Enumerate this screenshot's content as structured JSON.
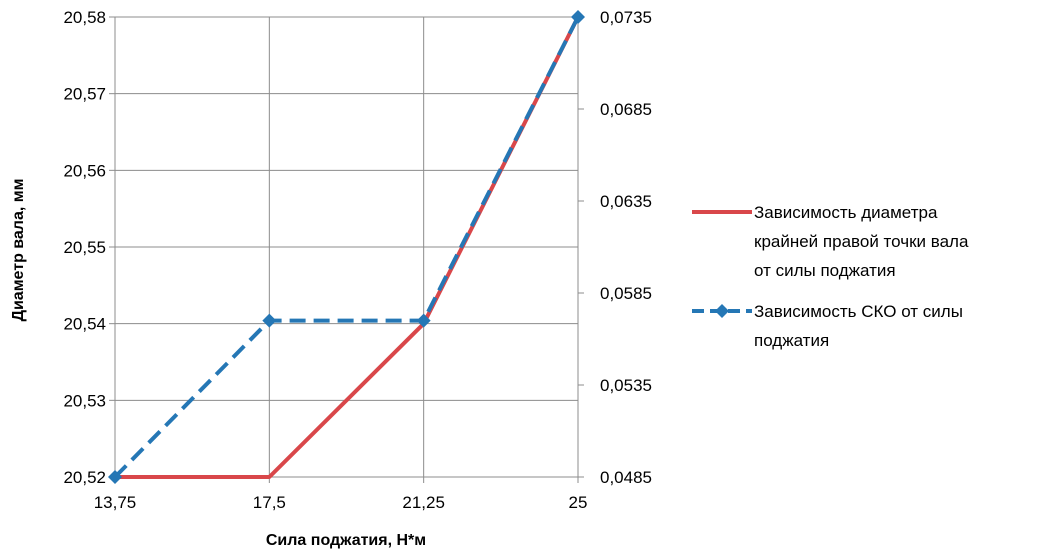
{
  "chart_data": {
    "type": "line",
    "x": [
      13.75,
      17.5,
      21.25,
      25
    ],
    "x_tick_labels": [
      "13,75",
      "17,5",
      "21,25",
      "25"
    ],
    "xlabel": "Сила поджатия, Н*м",
    "ylabel": "Диаметр вала, мм",
    "ylim": [
      20.52,
      20.58
    ],
    "y_tick_labels": [
      "20,52",
      "20,53",
      "20,54",
      "20,55",
      "20,56",
      "20,57",
      "20,58"
    ],
    "y2lim": [
      0.0485,
      0.0735
    ],
    "y2_tick_labels": [
      "0,0485",
      "0,0535",
      "0,0585",
      "0,0635",
      "0,0685",
      "0,0735"
    ],
    "grid": true,
    "legend_position": "right",
    "series": [
      {
        "name": "Зависимость диаметра крайней правой точки вала от силы поджатия",
        "axis": "left",
        "values": [
          20.52,
          20.52,
          20.54,
          20.58
        ],
        "color": "#d9474a",
        "style": "solid"
      },
      {
        "name": "Зависимость СКО от силы поджатия",
        "axis": "right",
        "values": [
          0.0485,
          0.057,
          0.057,
          0.0735
        ],
        "color": "#2577b5",
        "style": "dashed",
        "marker": "diamond"
      }
    ],
    "legend_lines": [
      [
        "Зависимость диаметра",
        "крайней правой точки вала",
        "от силы поджатия"
      ],
      [
        "Зависимость СКО от силы",
        "поджатия"
      ]
    ]
  }
}
